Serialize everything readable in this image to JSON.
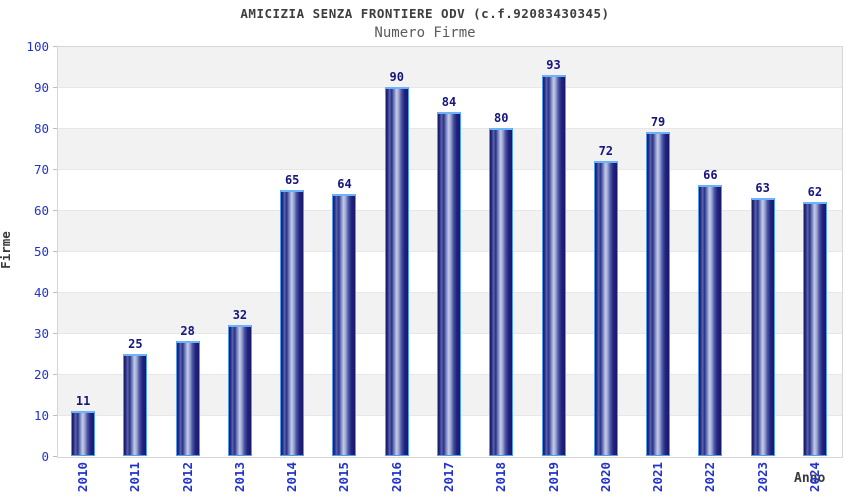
{
  "header": {
    "title": "AMICIZIA SENZA FRONTIERE ODV (c.f.92083430345)",
    "subtitle": "Numero Firme"
  },
  "chart_data": {
    "type": "bar",
    "title": "AMICIZIA SENZA FRONTIERE ODV (c.f.92083430345)",
    "subtitle": "Numero Firme",
    "xlabel": "Anno",
    "ylabel": "Firme",
    "categories": [
      "2010",
      "2011",
      "2012",
      "2013",
      "2014",
      "2015",
      "2016",
      "2017",
      "2018",
      "2019",
      "2020",
      "2021",
      "2022",
      "2023",
      "2024"
    ],
    "values": [
      11,
      25,
      28,
      32,
      65,
      64,
      90,
      84,
      80,
      93,
      72,
      79,
      66,
      63,
      62
    ],
    "ylim": [
      0,
      100
    ],
    "ytick_step": 10,
    "yticks": [
      0,
      10,
      20,
      30,
      40,
      50,
      60,
      70,
      80,
      90,
      100
    ],
    "legend": "none",
    "grid": "horizontal-bands-alternating",
    "colors": {
      "bar_dark": "#181868",
      "bar_mid": "#c6cce6",
      "bar_border": "#4e9ef2",
      "tick_label": "#2233cc",
      "value_label": "#15157d",
      "band_gray": "#f2f2f2",
      "band_white": "#ffffff",
      "gridline": "#e7e7e7",
      "plot_border": "#d6d6d6",
      "title_color": "#3d3d3d",
      "subtitle_color": "#5a5a5a",
      "axis_title_color": "#3a3a3a"
    }
  }
}
